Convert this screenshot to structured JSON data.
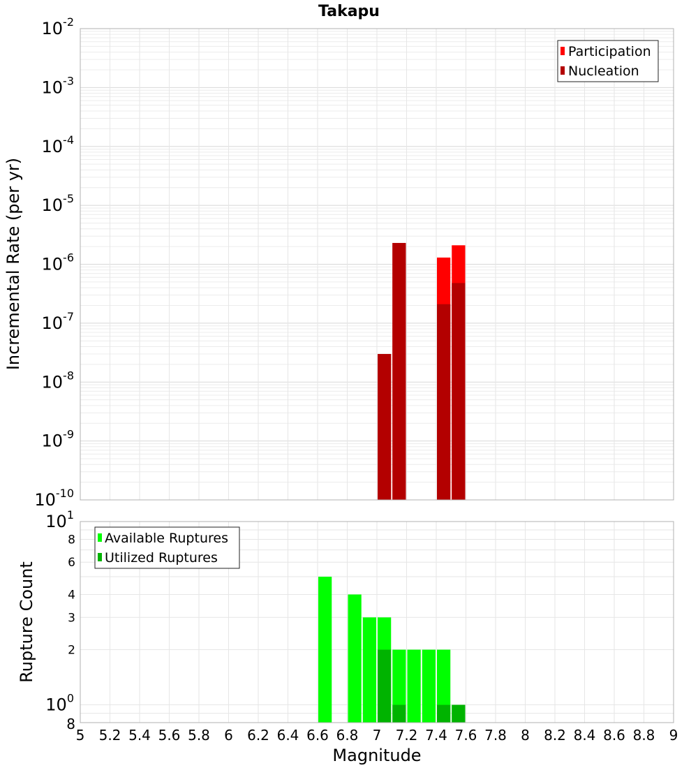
{
  "chart_data": [
    {
      "type": "bar",
      "title": "Takapu",
      "ylabel": "Incremental Rate (per yr)",
      "xlim": [
        5,
        9
      ],
      "ylim": [
        1e-10,
        0.01
      ],
      "yscale": "log",
      "y_tick_mantissa": "10",
      "y_tick_exponents": [
        "-10",
        "-9",
        "-8",
        "-7",
        "-6",
        "-5",
        "-4",
        "-3",
        "-2"
      ],
      "grid": true,
      "legend_position": "top-right",
      "x": [
        7.05,
        7.15,
        7.45,
        7.55
      ],
      "series": [
        {
          "name": "Participation",
          "color": "#ff0000",
          "values": [
            3e-08,
            2.3e-06,
            1.3e-06,
            2.1e-06
          ]
        },
        {
          "name": "Nucleation",
          "color": "#b30000",
          "values": [
            3e-08,
            2.3e-06,
            2.1e-07,
            4.8e-07
          ]
        }
      ]
    },
    {
      "type": "bar",
      "xlabel": "Magnitude",
      "ylabel": "Rupture Count",
      "xlim": [
        5,
        9
      ],
      "ylim": [
        0.8,
        10
      ],
      "yscale": "log",
      "x_tick_labels": [
        "5",
        "5.2",
        "5.4",
        "5.6",
        "5.8",
        "6",
        "6.2",
        "6.4",
        "6.6",
        "6.8",
        "7",
        "7.2",
        "7.4",
        "7.6",
        "7.8",
        "8",
        "8.2",
        "8.4",
        "8.6",
        "8.8",
        "9"
      ],
      "y_major_ticks": [
        {
          "value": 1,
          "mantissa": "10",
          "exp": "0"
        },
        {
          "value": 10,
          "mantissa": "10",
          "exp": "1"
        }
      ],
      "y_minor_tick_labels": [
        "2",
        "3",
        "4",
        "6",
        "8"
      ],
      "y_bottom_label": "8",
      "grid": true,
      "legend_position": "top-left",
      "x": [
        6.65,
        6.85,
        6.95,
        7.05,
        7.15,
        7.25,
        7.35,
        7.45,
        7.55
      ],
      "series": [
        {
          "name": "Available Ruptures",
          "color": "#00ff00",
          "values": [
            5,
            4,
            3,
            3,
            2,
            2,
            2,
            2,
            1
          ]
        },
        {
          "name": "Utilized Ruptures",
          "color": "#00b300",
          "values": [
            0,
            0,
            0,
            2,
            1,
            0,
            0,
            1,
            1
          ]
        }
      ]
    }
  ]
}
